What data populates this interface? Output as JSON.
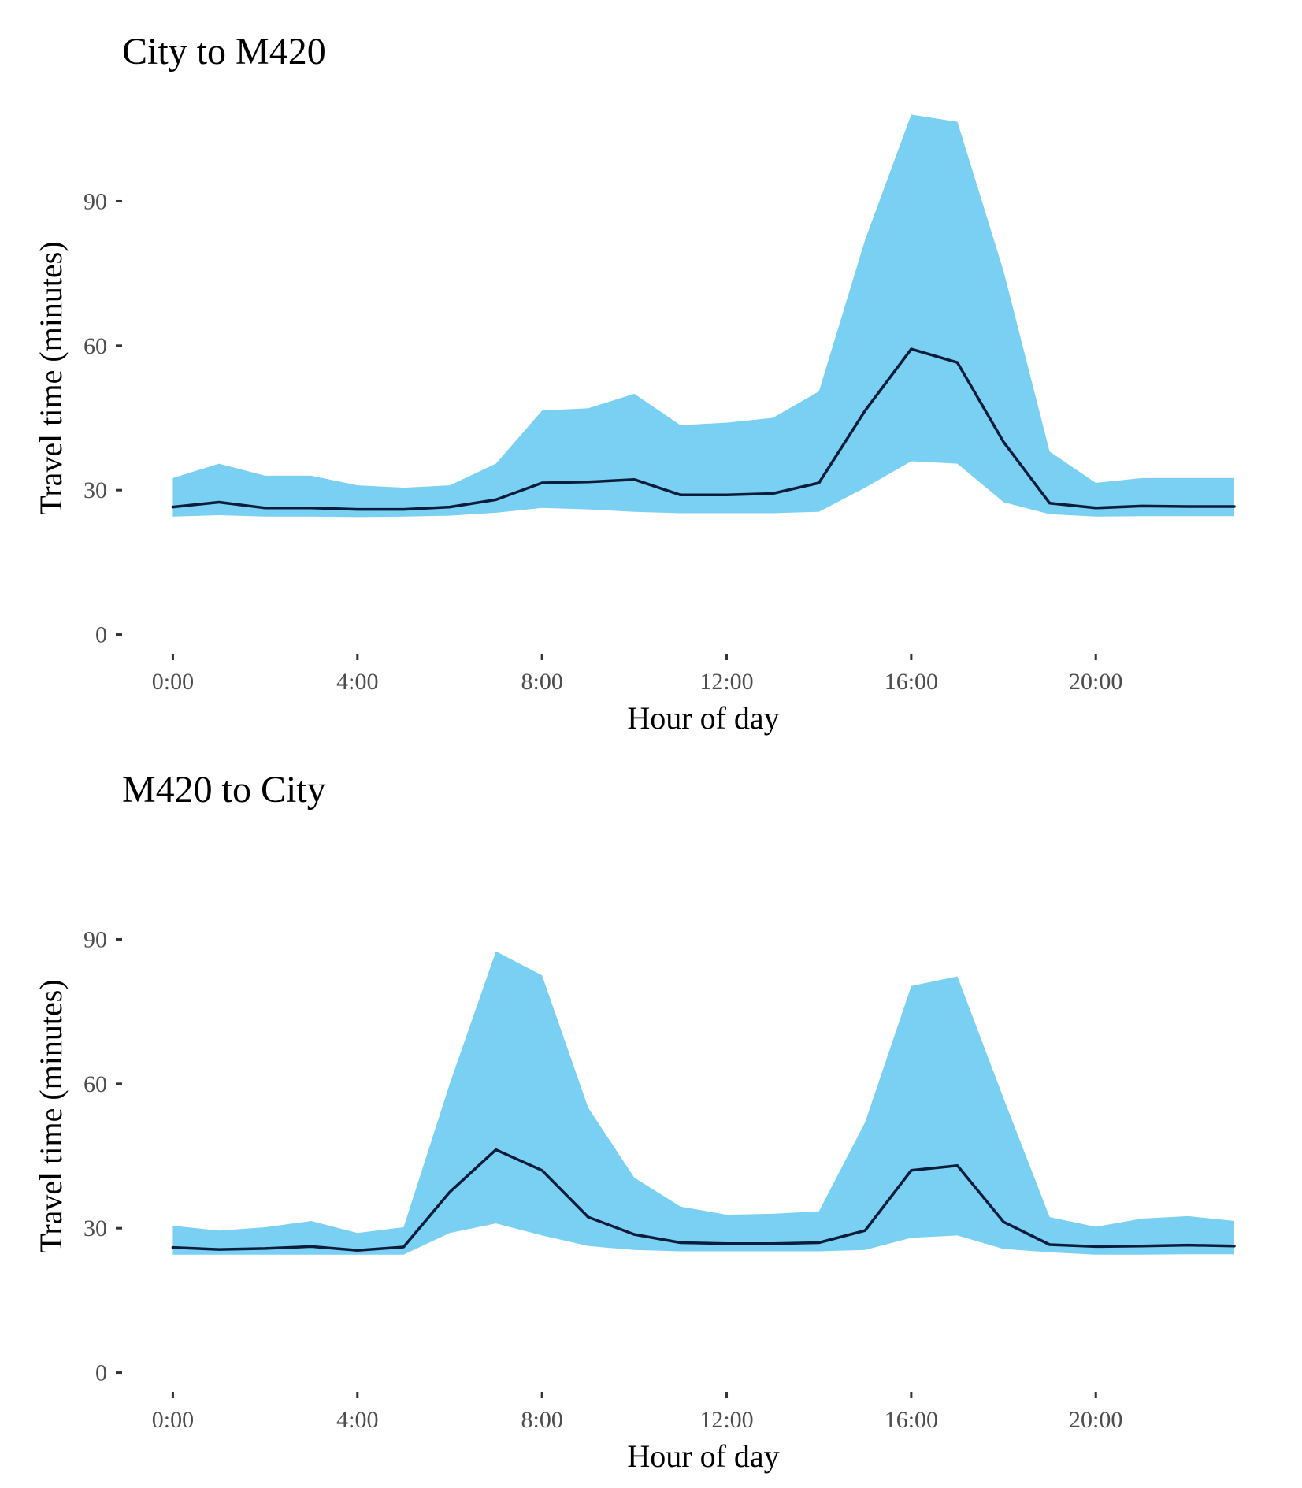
{
  "colors": {
    "ribbon": "#79d0f3",
    "line": "#0b1d3a",
    "tick_text": "#4d4d4d",
    "tick_mark": "#333333"
  },
  "chart_data": [
    {
      "type": "area",
      "title": "City to M420",
      "xlabel": "Hour of day",
      "ylabel": "Travel time (minutes)",
      "x": [
        0,
        1,
        2,
        3,
        4,
        5,
        6,
        7,
        8,
        9,
        10,
        11,
        12,
        13,
        14,
        15,
        16,
        17,
        18,
        19,
        20,
        21,
        22,
        23
      ],
      "x_ticks": [
        {
          "value": 0,
          "label": "0:00"
        },
        {
          "value": 4,
          "label": "4:00"
        },
        {
          "value": 8,
          "label": "8:00"
        },
        {
          "value": 12,
          "label": "12:00"
        },
        {
          "value": 16,
          "label": "16:00"
        },
        {
          "value": 20,
          "label": "20:00"
        }
      ],
      "y_ticks": [
        {
          "value": 0,
          "label": "0"
        },
        {
          "value": 30,
          "label": "30"
        },
        {
          "value": 60,
          "label": "60"
        },
        {
          "value": 90,
          "label": "90"
        }
      ],
      "xlim": [
        -1.1,
        23
      ],
      "ylim": [
        -4,
        112
      ],
      "grid": false,
      "series": [
        {
          "role": "upper",
          "values": [
            32.5,
            35.5,
            33,
            33,
            31,
            30.5,
            31,
            35.5,
            46.5,
            47,
            50,
            43.5,
            44,
            45,
            50.5,
            82,
            108,
            106.5,
            75.5,
            38,
            31.5,
            32.5,
            32.5,
            32.5
          ]
        },
        {
          "role": "lower",
          "values": [
            24.5,
            24.8,
            24.5,
            24.5,
            24.4,
            24.5,
            24.7,
            25.3,
            26.3,
            26,
            25.5,
            25.2,
            25.2,
            25.2,
            25.5,
            30.5,
            36,
            35.5,
            27.5,
            25,
            24.5,
            24.6,
            24.6,
            24.6
          ]
        },
        {
          "role": "median",
          "values": [
            26.5,
            27.5,
            26.3,
            26.3,
            26,
            26,
            26.5,
            28,
            31.5,
            31.7,
            32.2,
            29,
            29,
            29.3,
            31.5,
            46.5,
            59.3,
            56.5,
            40,
            27.3,
            26.3,
            26.7,
            26.6,
            26.6
          ]
        }
      ]
    },
    {
      "type": "area",
      "title": "M420 to City",
      "xlabel": "Hour of day",
      "ylabel": "Travel time (minutes)",
      "x": [
        0,
        1,
        2,
        3,
        4,
        5,
        6,
        7,
        8,
        9,
        10,
        11,
        12,
        13,
        14,
        15,
        16,
        17,
        18,
        19,
        20,
        21,
        22,
        23
      ],
      "x_ticks": [
        {
          "value": 0,
          "label": "0:00"
        },
        {
          "value": 4,
          "label": "4:00"
        },
        {
          "value": 8,
          "label": "8:00"
        },
        {
          "value": 12,
          "label": "12:00"
        },
        {
          "value": 16,
          "label": "16:00"
        },
        {
          "value": 20,
          "label": "20:00"
        }
      ],
      "y_ticks": [
        {
          "value": 0,
          "label": "0"
        },
        {
          "value": 30,
          "label": "30"
        },
        {
          "value": 60,
          "label": "60"
        },
        {
          "value": 90,
          "label": "90"
        }
      ],
      "xlim": [
        -1.1,
        23
      ],
      "ylim": [
        -4,
        112
      ],
      "grid": false,
      "series": [
        {
          "role": "upper",
          "values": [
            30.5,
            29.5,
            30.2,
            31.5,
            29,
            30.2,
            60,
            87.5,
            82.5,
            55,
            40.5,
            34.5,
            32.8,
            33,
            33.5,
            52,
            80.3,
            82.3,
            57,
            32.3,
            30.3,
            32,
            32.5,
            31.5
          ]
        },
        {
          "role": "lower",
          "values": [
            24.5,
            24.5,
            24.5,
            24.5,
            24.5,
            24.5,
            29,
            31,
            28.5,
            26.3,
            25.5,
            25.2,
            25.2,
            25.2,
            25.2,
            25.5,
            28,
            28.5,
            25.7,
            25,
            24.5,
            24.5,
            24.6,
            24.6
          ]
        },
        {
          "role": "median",
          "values": [
            26,
            25.6,
            25.8,
            26.2,
            25.4,
            26.1,
            37.5,
            46.3,
            42,
            32.3,
            28.7,
            27,
            26.8,
            26.8,
            27,
            29.5,
            42,
            43,
            31.3,
            26.6,
            26.2,
            26.3,
            26.5,
            26.3
          ]
        }
      ]
    }
  ]
}
